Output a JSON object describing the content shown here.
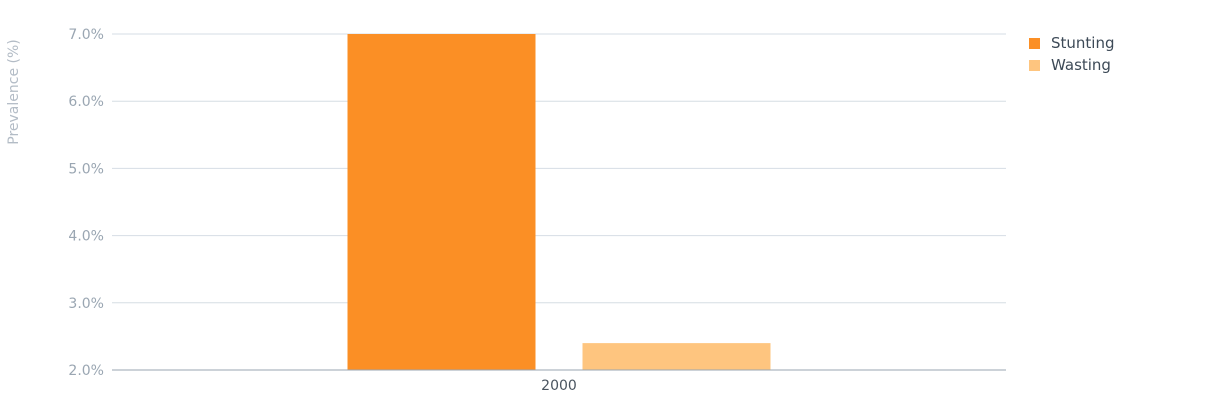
{
  "chart_data": {
    "type": "bar",
    "categories": [
      "2000"
    ],
    "series": [
      {
        "name": "Stunting",
        "values": [
          7.0
        ],
        "color": "#fb8f25"
      },
      {
        "name": "Wasting",
        "values": [
          2.4
        ],
        "color": "#fec57f"
      }
    ],
    "ylabel": "Prevalence (%)",
    "ylim": [
      2.0,
      7.0
    ],
    "yticks": [
      "2.0%",
      "3.0%",
      "4.0%",
      "5.0%",
      "6.0%",
      "7.0%"
    ],
    "grid": true,
    "legend_position": "top-right"
  }
}
